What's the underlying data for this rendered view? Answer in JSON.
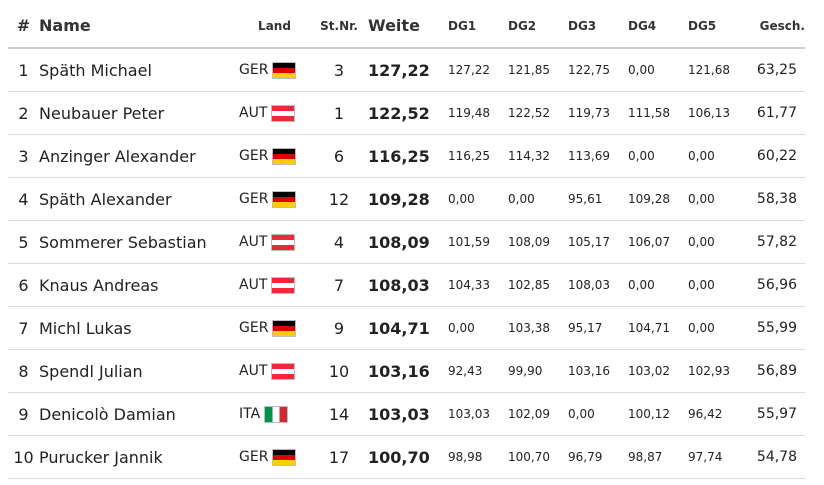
{
  "headers": {
    "rank": "#",
    "name": "Name",
    "land": "Land",
    "stnr": "St.Nr.",
    "weite": "Weite",
    "dg1": "DG1",
    "dg2": "DG2",
    "dg3": "DG3",
    "dg4": "DG4",
    "dg5": "DG5",
    "gesch": "Gesch."
  },
  "flag_icons": {
    "GER": "germany-flag-icon",
    "AUT": "austria-flag-icon",
    "ITA": "italy-flag-icon"
  },
  "rows": [
    {
      "rank": "1",
      "name": "Späth Michael",
      "land": "GER",
      "stnr": "3",
      "weite": "127,22",
      "dg1": "127,22",
      "dg2": "121,85",
      "dg3": "122,75",
      "dg4": "0,00",
      "dg5": "121,68",
      "gesch": "63,25"
    },
    {
      "rank": "2",
      "name": "Neubauer Peter",
      "land": "AUT",
      "stnr": "1",
      "weite": "122,52",
      "dg1": "119,48",
      "dg2": "122,52",
      "dg3": "119,73",
      "dg4": "111,58",
      "dg5": "106,13",
      "gesch": "61,77"
    },
    {
      "rank": "3",
      "name": "Anzinger Alexander",
      "land": "GER",
      "stnr": "6",
      "weite": "116,25",
      "dg1": "116,25",
      "dg2": "114,32",
      "dg3": "113,69",
      "dg4": "0,00",
      "dg5": "0,00",
      "gesch": "60,22"
    },
    {
      "rank": "4",
      "name": "Späth Alexander",
      "land": "GER",
      "stnr": "12",
      "weite": "109,28",
      "dg1": "0,00",
      "dg2": "0,00",
      "dg3": "95,61",
      "dg4": "109,28",
      "dg5": "0,00",
      "gesch": "58,38"
    },
    {
      "rank": "5",
      "name": "Sommerer Sebastian",
      "land": "AUT",
      "stnr": "4",
      "weite": "108,09",
      "dg1": "101,59",
      "dg2": "108,09",
      "dg3": "105,17",
      "dg4": "106,07",
      "dg5": "0,00",
      "gesch": "57,82"
    },
    {
      "rank": "6",
      "name": "Knaus Andreas",
      "land": "AUT",
      "stnr": "7",
      "weite": "108,03",
      "dg1": "104,33",
      "dg2": "102,85",
      "dg3": "108,03",
      "dg4": "0,00",
      "dg5": "0,00",
      "gesch": "56,96"
    },
    {
      "rank": "7",
      "name": "Michl Lukas",
      "land": "GER",
      "stnr": "9",
      "weite": "104,71",
      "dg1": "0,00",
      "dg2": "103,38",
      "dg3": "95,17",
      "dg4": "104,71",
      "dg5": "0,00",
      "gesch": "55,99"
    },
    {
      "rank": "8",
      "name": "Spendl Julian",
      "land": "AUT",
      "stnr": "10",
      "weite": "103,16",
      "dg1": "92,43",
      "dg2": "99,90",
      "dg3": "103,16",
      "dg4": "103,02",
      "dg5": "102,93",
      "gesch": "56,89"
    },
    {
      "rank": "9",
      "name": "Denicolò Damian",
      "land": "ITA",
      "stnr": "14",
      "weite": "103,03",
      "dg1": "103,03",
      "dg2": "102,09",
      "dg3": "0,00",
      "dg4": "100,12",
      "dg5": "96,42",
      "gesch": "55,97"
    },
    {
      "rank": "10",
      "name": "Purucker Jannik",
      "land": "GER",
      "stnr": "17",
      "weite": "100,70",
      "dg1": "98,98",
      "dg2": "100,70",
      "dg3": "96,79",
      "dg4": "98,87",
      "dg5": "97,74",
      "gesch": "54,78"
    }
  ]
}
